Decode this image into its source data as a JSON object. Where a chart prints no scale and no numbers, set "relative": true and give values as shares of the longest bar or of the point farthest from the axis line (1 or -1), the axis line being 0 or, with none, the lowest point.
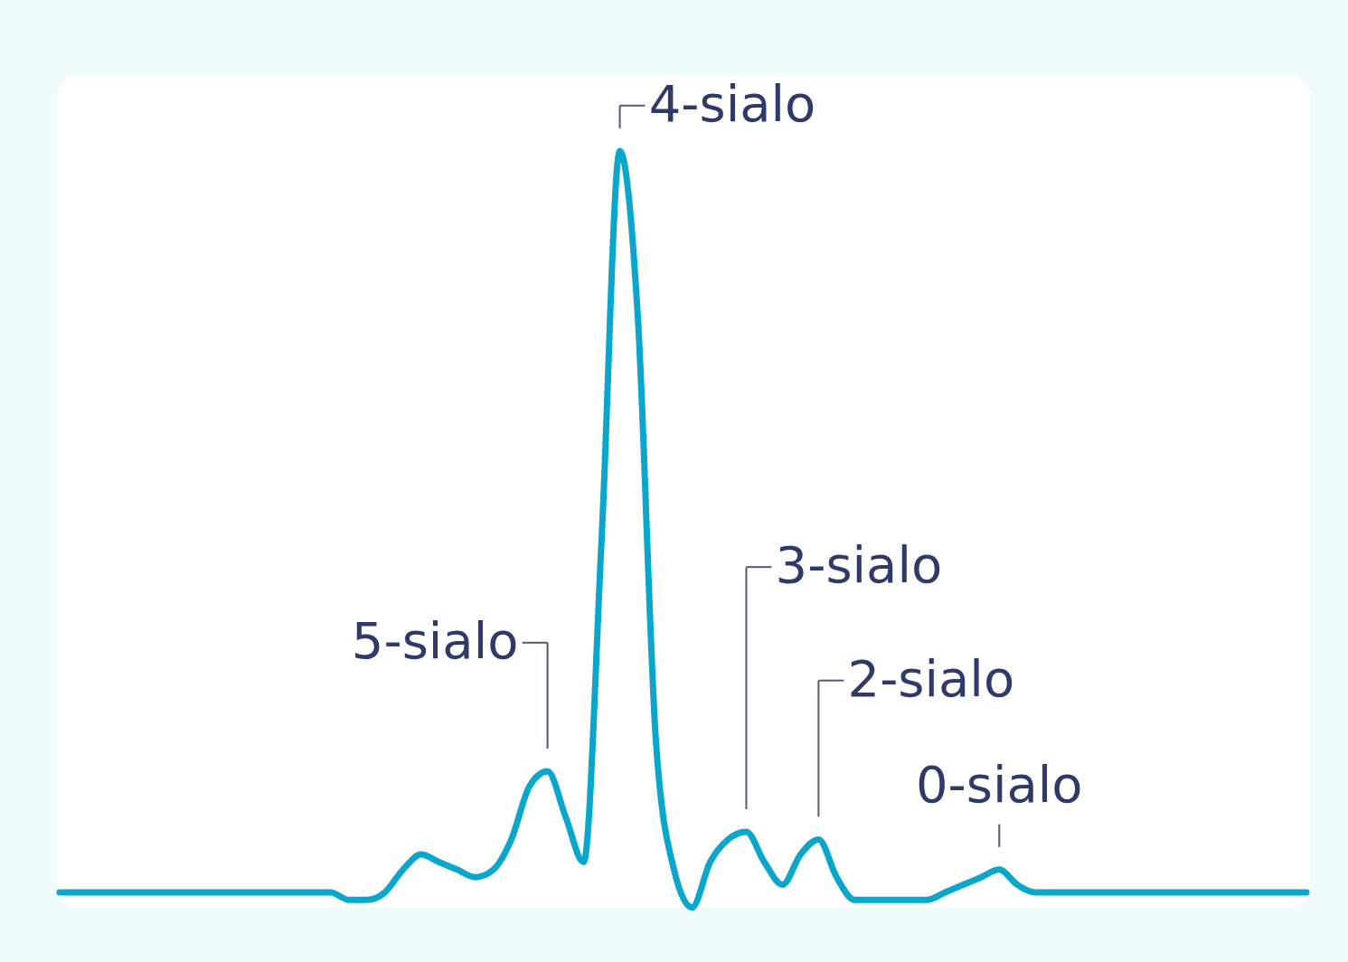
{
  "chart_data": {
    "type": "line",
    "relative": true,
    "tick_labels": false,
    "grid": false,
    "marker": "none",
    "line_style": "solid",
    "categories": [
      null,
      null,
      null,
      null,
      null,
      null,
      null,
      null,
      null,
      null,
      null,
      null,
      null,
      null,
      null,
      null,
      null,
      null,
      null,
      null,
      null,
      null,
      null,
      null,
      null,
      null,
      null,
      null,
      null,
      null,
      null,
      null,
      null,
      null,
      null,
      null,
      null,
      null,
      null,
      null,
      null,
      null,
      null,
      null,
      null,
      null,
      null,
      null,
      null,
      null,
      null,
      null,
      null,
      null,
      null,
      null,
      null,
      null,
      null,
      null,
      null,
      null,
      null,
      null,
      null,
      null,
      null,
      null,
      null,
      null
    ],
    "series": [
      {
        "color": "#0aa6cc",
        "values": [
          0.02,
          0.02,
          0.02,
          0.02,
          0.02,
          0.02,
          0.02,
          0.02,
          0.02,
          0.02,
          0.02,
          0.02,
          0.02,
          0.02,
          0.02,
          0.02,
          0.01,
          0.01,
          0.02,
          0.05,
          0.07,
          0.06,
          0.05,
          0.04,
          0.05,
          0.09,
          0.16,
          0.18,
          0.12,
          0.06,
          0.49,
          1,
          0.78,
          0.22,
          0.05,
          0,
          0.06,
          0.09,
          0.1,
          0.06,
          0.03,
          0.07,
          0.09,
          0.04,
          0.01,
          0.01,
          0.01,
          0.01,
          0.01,
          0.02,
          0.03,
          0.04,
          0.05,
          0.03,
          0.02,
          0.02,
          0.02,
          0.02,
          0.02,
          0.02,
          0.02,
          0.02,
          0.02,
          0.02,
          0.02,
          0.02,
          0.02,
          0.02,
          0.02,
          0.02
        ]
      }
    ],
    "annotations": [
      "4-sialo",
      "5-sialo",
      "3-sialo",
      "2-sialo",
      "0-sialo"
    ]
  }
}
